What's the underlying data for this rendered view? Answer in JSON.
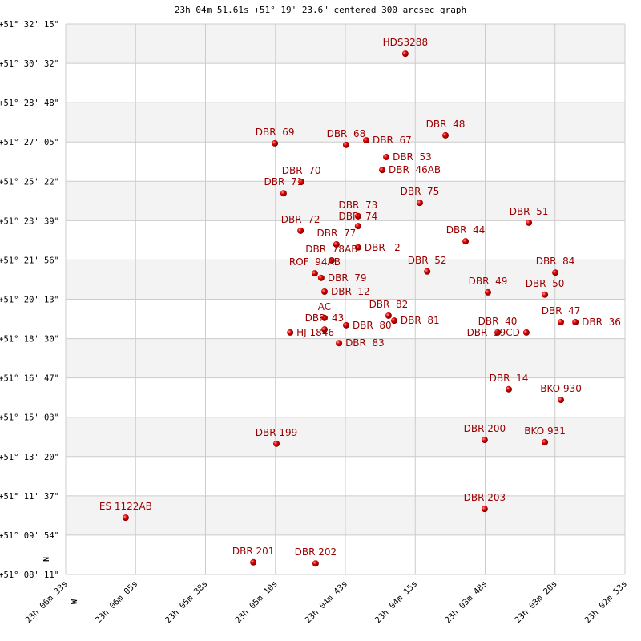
{
  "chart_data": {
    "type": "scatter",
    "title": "23h 04m 51.61s +51° 19' 23.6\" centered 300 arcsec graph",
    "x_direction_label": "W",
    "y_direction_label": "N",
    "xlim": [
      "23h 06m 33s",
      "23h 02m 53s"
    ],
    "ylim": [
      "+51° 08' 11\"",
      "+51° 32' 15\""
    ],
    "x_ticks": [
      "23h 06m 33s",
      "23h 06m 05s",
      "23h 05m 38s",
      "23h 05m 10s",
      "23h 04m 43s",
      "23h 04m 15s",
      "23h 03m 48s",
      "23h 03m 20s",
      "23h 02m 53s"
    ],
    "y_ticks": [
      "+51° 32' 15\"",
      "+51° 30' 32\"",
      "+51° 28' 48\"",
      "+51° 27' 05\"",
      "+51° 25' 22\"",
      "+51° 23' 39\"",
      "+51° 21' 56\"",
      "+51° 20' 13\"",
      "+51° 18' 30\"",
      "+51° 16' 47\"",
      "+51° 15' 03\"",
      "+51° 13' 20\"",
      "+51° 11' 37\"",
      "+51° 09' 54\"",
      "+51° 08' 11\""
    ],
    "grid": true,
    "colors": {
      "point": "#dd0000",
      "label": "#9a0000",
      "band": "#f3f3f3",
      "grid": "#cccccc"
    },
    "points": [
      {
        "name": "HDS3288",
        "ra": "23h 04m 19.4s",
        "dec": "+51° 30' 57\""
      },
      {
        "name": "DBR  69",
        "ra": "23h 05m 10.7s",
        "dec": "+51° 27' 02\""
      },
      {
        "name": "DBR  68",
        "ra": "23h 04m 42.7s",
        "dec": "+51° 26' 58\""
      },
      {
        "name": "DBR  67",
        "ra": "23h 04m 34.8s",
        "dec": "+51° 27' 10\""
      },
      {
        "name": "DBR  53",
        "ra": "23h 04m 26.9s",
        "dec": "+51° 26' 26\""
      },
      {
        "name": "DBR  46AB",
        "ra": "23h 04m 28.5s",
        "dec": "+51° 25' 52\""
      },
      {
        "name": "DBR  48",
        "ra": "23h 04m 03.6s",
        "dec": "+51° 27' 23\""
      },
      {
        "name": "DBR  70",
        "ra": "23h 05m 00.3s",
        "dec": "+51° 25' 21\""
      },
      {
        "name": "DBR  71",
        "ra": "23h 05m 07.3s",
        "dec": "+51° 24' 51\""
      },
      {
        "name": "DBR  75",
        "ra": "23h 04m 13.7s",
        "dec": "+51° 24' 26\""
      },
      {
        "name": "DBR  73",
        "ra": "23h 04m 38.0s",
        "dec": "+51° 23' 51\""
      },
      {
        "name": "DBR  74",
        "ra": "23h 04m 38.0s",
        "dec": "+51° 23' 25\""
      },
      {
        "name": "DBR  51",
        "ra": "23h 03m 30.8s",
        "dec": "+51° 23' 34\""
      },
      {
        "name": "DBR  72",
        "ra": "23h 05m 00.6s",
        "dec": "+51° 23' 13\""
      },
      {
        "name": "DBR  44",
        "ra": "23h 03m 55.7s",
        "dec": "+51° 22' 45\""
      },
      {
        "name": "DBR  77",
        "ra": "23h 04m 46.5s",
        "dec": "+51° 22' 37\""
      },
      {
        "name": "DBR   2",
        "ra": "23h 04m 38.0s",
        "dec": "+51° 22' 29\""
      },
      {
        "name": "DBR  78AB",
        "ra": "23h 04m 48.4s",
        "dec": "+51° 21' 55\""
      },
      {
        "name": "ROF  94AB",
        "ra": "23h 04m 55.0s",
        "dec": "+51° 21' 21\""
      },
      {
        "name": "DBR  79",
        "ra": "23h 04m 52.5s",
        "dec": "+51° 21' 09\""
      },
      {
        "name": "DBR  12",
        "ra": "23h 04m 51.2s",
        "dec": "+51° 20' 33\""
      },
      {
        "name": "AC",
        "ra": "23h 04m 51.2s",
        "dec": "+51° 19' 24\""
      },
      {
        "name": "DBR  43",
        "ra": "23h 04m 51.2s",
        "dec": "+51° 18' 54\""
      },
      {
        "name": "HJ 1846",
        "ra": "23h 05m 04.7s",
        "dec": "+51° 18' 46\""
      },
      {
        "name": "DBR  80",
        "ra": "23h 04m 42.7s",
        "dec": "+51° 19' 05\""
      },
      {
        "name": "DBR  83",
        "ra": "23h 04m 45.5s",
        "dec": "+51° 18' 18\""
      },
      {
        "name": "DBR  82",
        "ra": "23h 04m 26.0s",
        "dec": "+51° 19' 30\""
      },
      {
        "name": "DBR  81",
        "ra": "23h 04m 23.8s",
        "dec": "+51° 19' 17\""
      },
      {
        "name": "DBR  52",
        "ra": "23h 04m 10.8s",
        "dec": "+51° 21' 26\""
      },
      {
        "name": "DBR  84",
        "ra": "23h 03m 20.4s",
        "dec": "+51° 21' 23\""
      },
      {
        "name": "DBR  49",
        "ra": "23h 03m 46.9s",
        "dec": "+51° 20' 31\""
      },
      {
        "name": "DBR  50",
        "ra": "23h 03m 24.5s",
        "dec": "+51° 20' 25\""
      },
      {
        "name": "DBR  47",
        "ra": "23h 03m 18.2s",
        "dec": "+51° 19' 13\""
      },
      {
        "name": "DBR  36",
        "ra": "23h 03m 12.5s",
        "dec": "+51° 19' 13\""
      },
      {
        "name": "DBR  40",
        "ra": "23h 03m 43.1s",
        "dec": "+51° 18' 46\""
      },
      {
        "name": "DBR  39CD",
        "ra": "23h 03m 31.8s",
        "dec": "+51° 18' 46\""
      },
      {
        "name": "DBR  14",
        "ra": "23h 03m 38.7s",
        "dec": "+51° 16' 17\""
      },
      {
        "name": "BKO 930",
        "ra": "23h 03m 18.2s",
        "dec": "+51° 15' 49\""
      },
      {
        "name": "DBR 199",
        "ra": "23h 05m 10.1s",
        "dec": "+51° 13' 54\""
      },
      {
        "name": "DBR 200",
        "ra": "23h 03m 48.2s",
        "dec": "+51° 14' 04\""
      },
      {
        "name": "BKO 931",
        "ra": "23h 03m 24.5s",
        "dec": "+51° 13' 58\""
      },
      {
        "name": "ES 1122AB",
        "ra": "23h 06m 09.4s",
        "dec": "+51° 10' 40\""
      },
      {
        "name": "DBR 203",
        "ra": "23h 03m 48.2s",
        "dec": "+51° 11' 03\""
      },
      {
        "name": "DBR 201",
        "ra": "23h 05m 19.2s",
        "dec": "+51° 08' 43\""
      },
      {
        "name": "DBR 202",
        "ra": "23h 04m 54.7s",
        "dec": "+51° 08' 40\""
      }
    ]
  }
}
